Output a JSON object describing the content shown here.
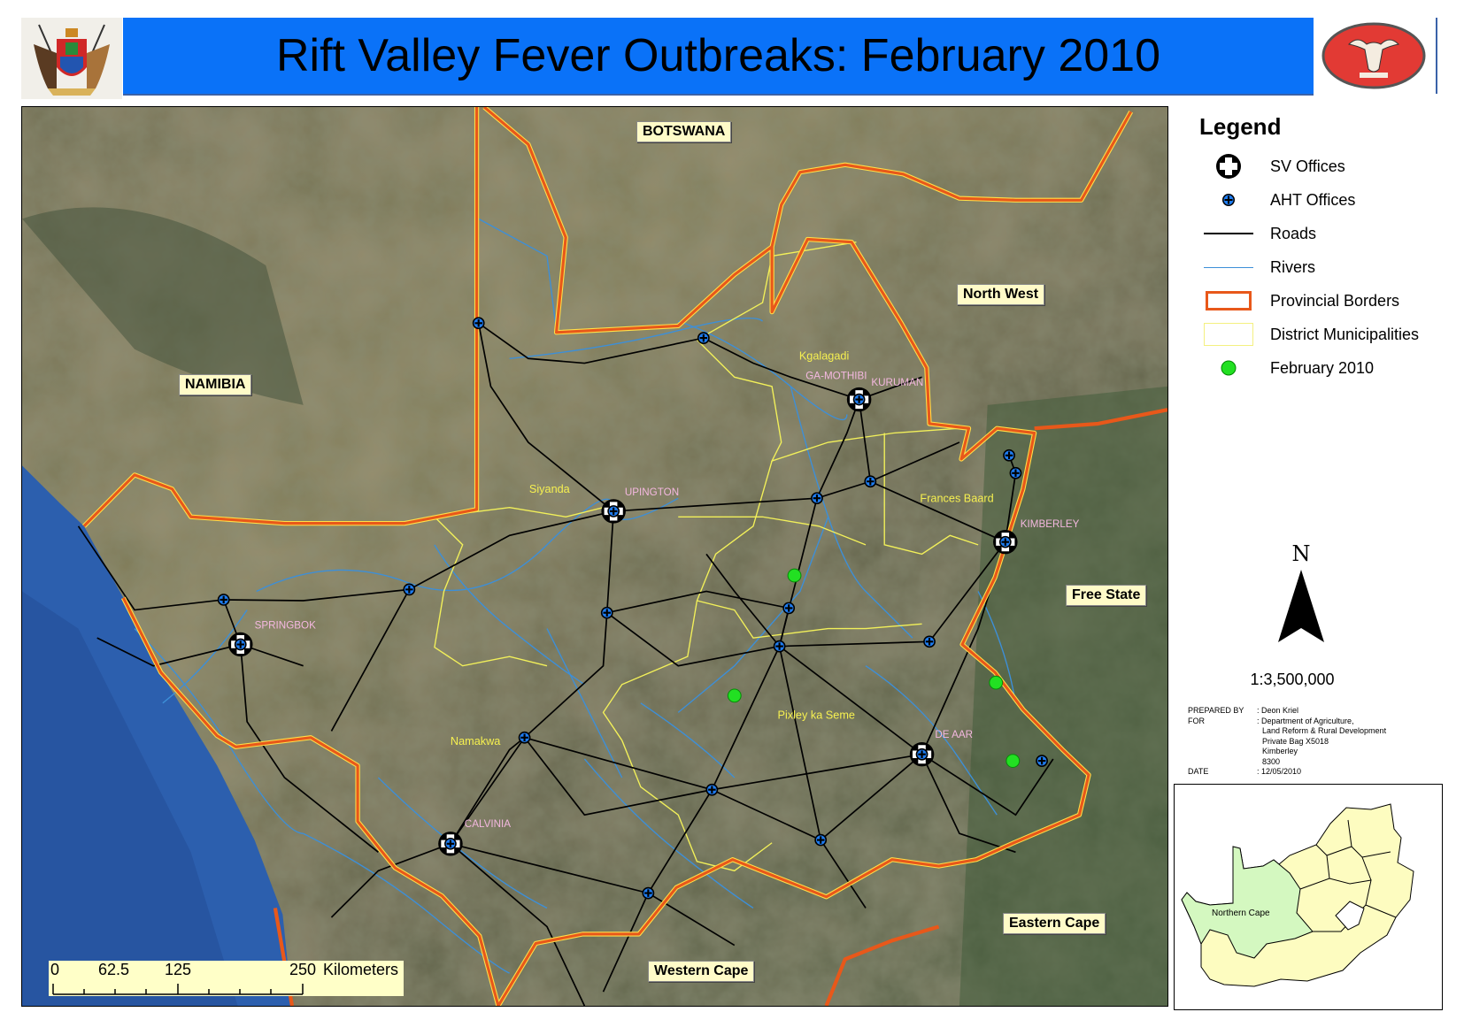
{
  "header": {
    "title": "Rift Valley Fever  Outbreaks: February 2010",
    "left_logo": "provincial-coat-of-arms",
    "right_logo": "buffalo-emblem"
  },
  "legend": {
    "title": "Legend",
    "items": [
      {
        "label": "SV Offices",
        "symbol": "large-cross-circle-icon"
      },
      {
        "label": "AHT Offices",
        "symbol": "small-blue-cross-icon"
      },
      {
        "label": "Roads",
        "symbol": "black-line",
        "color": "#000000"
      },
      {
        "label": "Rivers",
        "symbol": "blue-line",
        "color": "#3d8fd8"
      },
      {
        "label": "Provincial Borders",
        "symbol": "orange-box",
        "color": "#e8581a"
      },
      {
        "label": "District Municipalities",
        "symbol": "yellow-box",
        "color": "#f4f080"
      },
      {
        "label": "February 2010",
        "symbol": "green-dot",
        "color": "#22e022"
      }
    ]
  },
  "north_arrow": "N",
  "scale": "1:3,500,000",
  "prepared": {
    "rows": [
      {
        "key": "PREPARED BY",
        "value": ": Deon Kriel"
      },
      {
        "key": "FOR",
        "value": ": Department of Agriculture,"
      },
      {
        "key": "",
        "value": "Land Reform & Rural Development"
      },
      {
        "key": "",
        "value": "Private Bag X5018"
      },
      {
        "key": "",
        "value": "Kimberley"
      },
      {
        "key": "",
        "value": "8300"
      },
      {
        "key": "DATE",
        "value": ": 12/05/2010"
      }
    ]
  },
  "inset": {
    "label": "Northern Cape",
    "highlight": "#d4f8c0",
    "fill": "#fdfcc0"
  },
  "map": {
    "regions": [
      "BOTSWANA",
      "NAMIBIA",
      "North West",
      "Free State",
      "Eastern Cape",
      "Western Cape"
    ],
    "towns": [
      "KURUMAN",
      "GA-MOTHIBI",
      "UPINGTON",
      "KIMBERLEY",
      "SPRINGBOK",
      "DE AAR",
      "CALVINIA"
    ],
    "districts": [
      "Kgalagadi",
      "Siyanda",
      "Frances Baard",
      "Namakwa",
      "Pixley ka Seme"
    ],
    "scalebar": {
      "ticks": [
        "0",
        "62.5",
        "125",
        "250"
      ],
      "unit": "Kilometers"
    }
  }
}
